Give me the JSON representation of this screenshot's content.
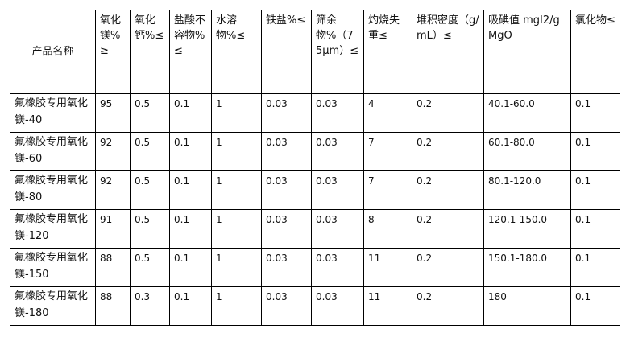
{
  "table": {
    "headers": [
      "产品名称",
      "氧化镁%≥",
      "氧化钙%≤",
      "盐酸不容物%≤",
      "水溶物%≤",
      "铁盐%≤",
      "筛余物%（75μm）≤",
      "灼烧失重≤",
      "堆积密度（g/mL）≤",
      "吸碘值 mgI2/gMgO",
      "氯化物≤"
    ],
    "rows": [
      [
        "氟橡胶专用氧化镁-40",
        "95",
        "0.5",
        "0.1",
        "1",
        "0.03",
        "0.03",
        "4",
        "0.2",
        "40.1-60.0",
        "0.1"
      ],
      [
        "氟橡胶专用氧化镁-60",
        "92",
        "0.5",
        "0.1",
        "1",
        "0.03",
        "0.03",
        "7",
        "0.2",
        "60.1-80.0",
        "0.1"
      ],
      [
        "氟橡胶专用氧化镁-80",
        "92",
        "0.5",
        "0.1",
        "1",
        "0.03",
        "0.03",
        "7",
        "0.2",
        "80.1-120.0",
        "0.1"
      ],
      [
        "氟橡胶专用氧化镁-120",
        "91",
        "0.5",
        "0.1",
        "1",
        "0.03",
        "0.03",
        "8",
        "0.2",
        "120.1-150.0",
        "0.1"
      ],
      [
        "氟橡胶专用氧化镁-150",
        "88",
        "0.5",
        "0.1",
        "1",
        "0.03",
        "0.03",
        "11",
        "0.2",
        "150.1-180.0",
        "0.1"
      ],
      [
        "氟橡胶专用氧化镁-180",
        "88",
        "0.3",
        "0.1",
        "1",
        "0.03",
        "0.03",
        "11",
        "0.2",
        "180",
        "0.1"
      ]
    ]
  }
}
